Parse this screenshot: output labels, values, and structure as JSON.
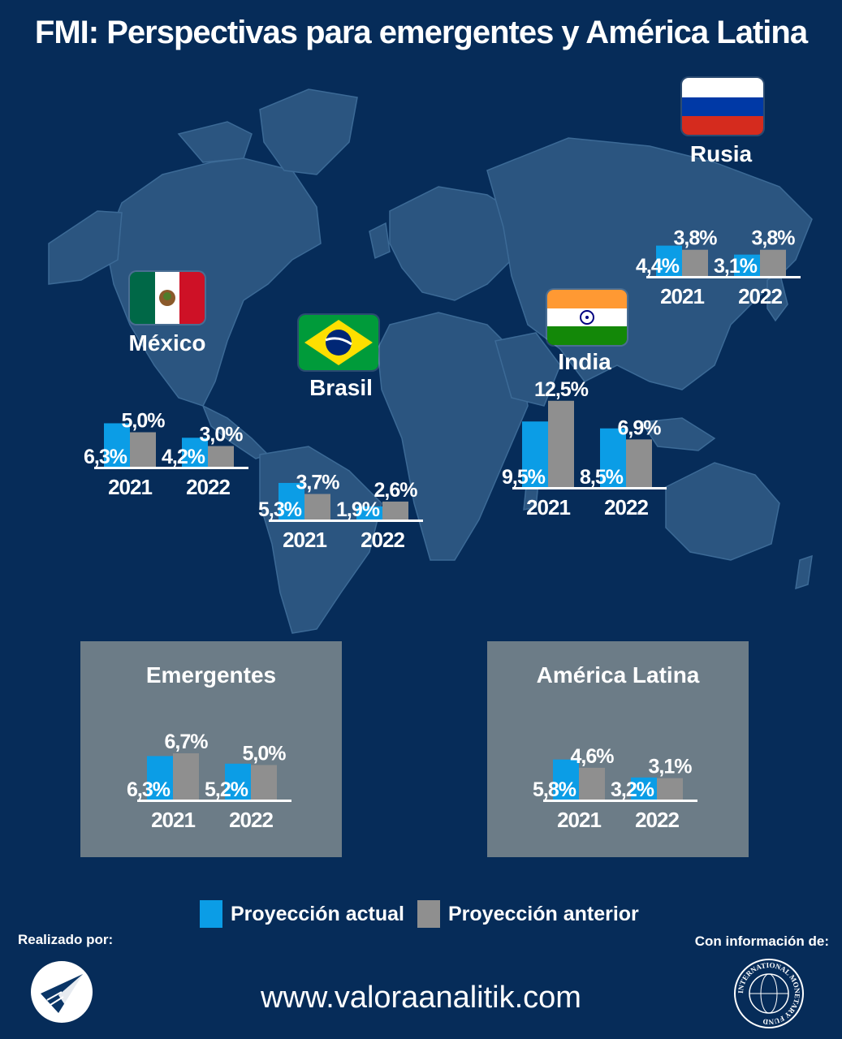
{
  "title": "FMI: Perspectivas para emergentes y América Latina",
  "colors": {
    "actual": "#0b9de6",
    "anterior": "#8f8f8f",
    "background": "#062c59",
    "land": "#2b5580",
    "panel": "#6c7c87"
  },
  "legend": {
    "actual": "Proyección actual",
    "anterior": "Proyección anterior"
  },
  "chart_data": [
    {
      "type": "bar",
      "name": "México",
      "categories": [
        "2021",
        "2022"
      ],
      "series": [
        {
          "name": "Proyección actual",
          "values": [
            6.3,
            4.2
          ]
        },
        {
          "name": "Proyección anterior",
          "values": [
            5.0,
            3.0
          ]
        }
      ],
      "labels": {
        "actual": [
          "6,3%",
          "4,2%"
        ],
        "anterior": [
          "5,0%",
          "3,0%"
        ]
      }
    },
    {
      "type": "bar",
      "name": "Brasil",
      "categories": [
        "2021",
        "2022"
      ],
      "series": [
        {
          "name": "Proyección actual",
          "values": [
            5.3,
            1.9
          ]
        },
        {
          "name": "Proyección anterior",
          "values": [
            3.7,
            2.6
          ]
        }
      ],
      "labels": {
        "actual": [
          "5,3%",
          "1,9%"
        ],
        "anterior": [
          "3,7%",
          "2,6%"
        ]
      }
    },
    {
      "type": "bar",
      "name": "India",
      "categories": [
        "2021",
        "2022"
      ],
      "series": [
        {
          "name": "Proyección actual",
          "values": [
            9.5,
            8.5
          ]
        },
        {
          "name": "Proyección anterior",
          "values": [
            12.5,
            6.9
          ]
        }
      ],
      "labels": {
        "actual": [
          "9,5%",
          "8,5%"
        ],
        "anterior": [
          "12,5%",
          "6,9%"
        ]
      }
    },
    {
      "type": "bar",
      "name": "Rusia",
      "categories": [
        "2021",
        "2022"
      ],
      "series": [
        {
          "name": "Proyección actual",
          "values": [
            4.4,
            3.1
          ]
        },
        {
          "name": "Proyección anterior",
          "values": [
            3.8,
            3.8
          ]
        }
      ],
      "labels": {
        "actual": [
          "4,4%",
          "3,1%"
        ],
        "anterior": [
          "3,8%",
          "3,8%"
        ]
      }
    },
    {
      "type": "bar",
      "name": "Emergentes",
      "categories": [
        "2021",
        "2022"
      ],
      "series": [
        {
          "name": "Proyección actual",
          "values": [
            6.3,
            5.2
          ]
        },
        {
          "name": "Proyección anterior",
          "values": [
            6.7,
            5.0
          ]
        }
      ],
      "labels": {
        "actual": [
          "6,3%",
          "5,2%"
        ],
        "anterior": [
          "6,7%",
          "5,0%"
        ]
      }
    },
    {
      "type": "bar",
      "name": "América Latina",
      "categories": [
        "2021",
        "2022"
      ],
      "series": [
        {
          "name": "Proyección actual",
          "values": [
            5.8,
            3.2
          ]
        },
        {
          "name": "Proyección anterior",
          "values": [
            4.6,
            3.1
          ]
        }
      ],
      "labels": {
        "actual": [
          "5,8%",
          "3,2%"
        ],
        "anterior": [
          "4,6%",
          "3,1%"
        ]
      }
    }
  ],
  "credits": {
    "made_by": "Realizado por:",
    "info_from": "Con información de:"
  },
  "website": "www.valoraanalitik.com",
  "icons": {
    "left_logo": "valora-analitik-logo-icon",
    "right_logo": "imf-seal-icon",
    "flags": [
      "mexico-flag-icon",
      "brazil-flag-icon",
      "india-flag-icon",
      "russia-flag-icon"
    ]
  },
  "imf_seal_text": "INTERNATIONAL MONETARY FUND"
}
